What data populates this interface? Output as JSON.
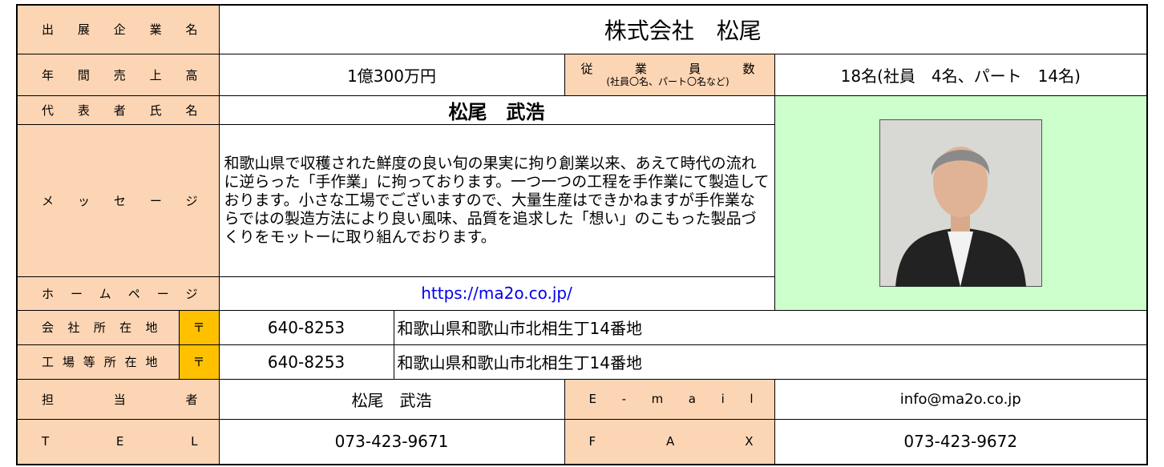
{
  "company": {
    "label": "出展企業名",
    "value": "株式会社　松尾"
  },
  "sales": {
    "label": "年間売上高",
    "value": "1億300万円"
  },
  "employees": {
    "label": "従業員数",
    "note": "(社員〇名、パート〇名など)",
    "value": "18名(社員　4名、パート　14名)"
  },
  "representative": {
    "label": "代表者氏名",
    "value": "松尾　武浩"
  },
  "message": {
    "label": "メッセージ",
    "value": "和歌山県で収穫された鮮度の良い旬の果実に拘り創業以来、あえて時代の流れに逆らった「手作業」に拘っております。一つ一つの工程を手作業にて製造しております。小さな工場でございますので、大量生産はできかねますが手作業ならではの製造方法により良い風味、品質を追求した「想い」のこもった製品づくりをモットーに取り組んでおります。"
  },
  "homepage": {
    "label": "ホームページ",
    "value": "https://ma2o.co.jp/"
  },
  "office": {
    "label": "会社所在地",
    "postal_mark": "〒",
    "postal_code": "640-8253",
    "address": "和歌山県和歌山市北相生丁14番地"
  },
  "factory": {
    "label": "工場等所在地",
    "postal_mark": "〒",
    "postal_code": "640-8253",
    "address": "和歌山県和歌山市北相生丁14番地"
  },
  "contact": {
    "label": "担当者",
    "value": "松尾　武浩",
    "email_label": "E - m a i l",
    "email": "info@ma2o.co.jp"
  },
  "phone": {
    "label": "T E L",
    "value": "073-423-9671",
    "fax_label": "F A X",
    "fax": "073-423-9672"
  }
}
